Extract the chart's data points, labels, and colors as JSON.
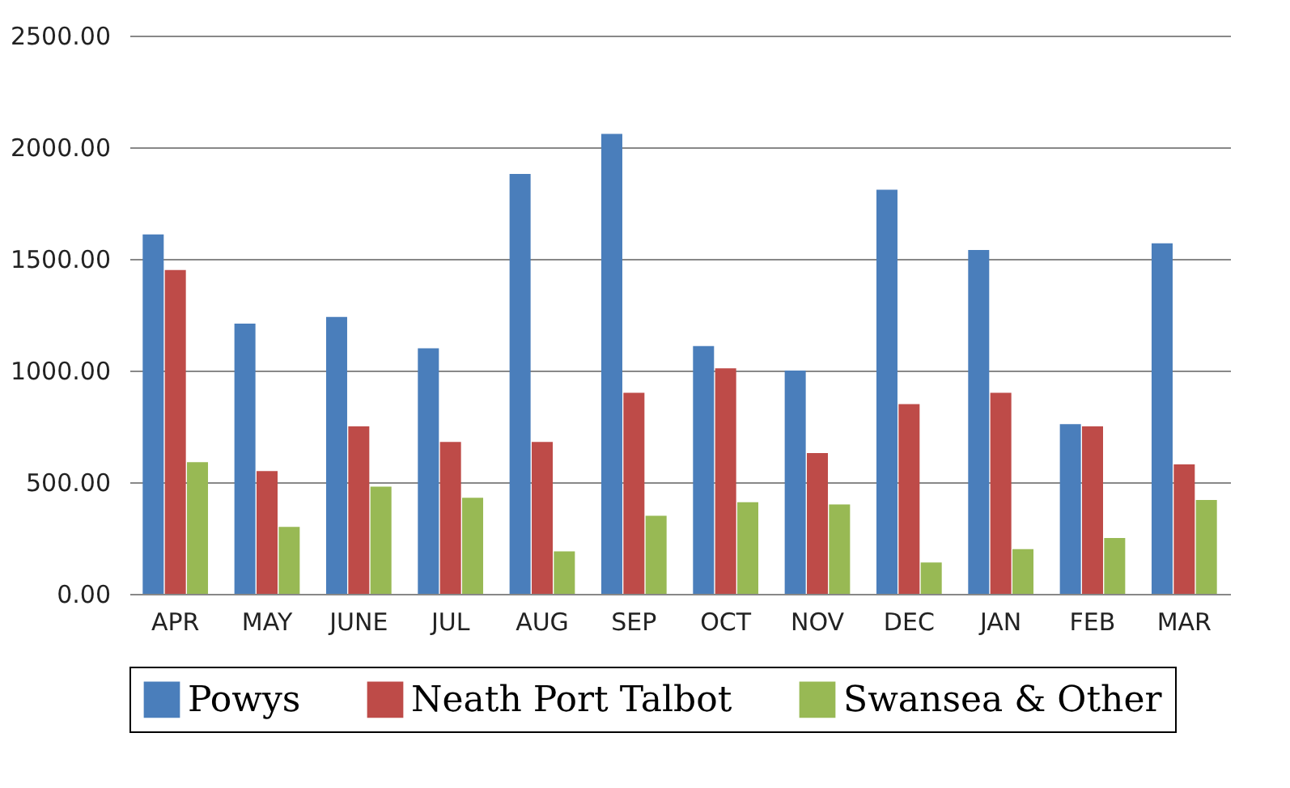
{
  "chart_data": {
    "type": "bar",
    "categories": [
      "APR",
      "MAY",
      "JUNE",
      "JUL",
      "AUG",
      "SEP",
      "OCT",
      "NOV",
      "DEC",
      "JAN",
      "FEB",
      "MAR"
    ],
    "series": [
      {
        "name": "Powys",
        "color": "#4a7ebb",
        "values": [
          1610,
          1210,
          1240,
          1100,
          1880,
          2060,
          1110,
          1000,
          1810,
          1540,
          760,
          1570
        ]
      },
      {
        "name": "Neath Port Talbot",
        "color": "#be4b48",
        "values": [
          1450,
          550,
          750,
          680,
          680,
          900,
          1010,
          630,
          850,
          900,
          750,
          580
        ]
      },
      {
        "name": "Swansea & Other",
        "color": "#98b954",
        "values": [
          590,
          300,
          480,
          430,
          190,
          350,
          410,
          400,
          140,
          200,
          250,
          420
        ]
      }
    ],
    "ylim": [
      0,
      2500
    ],
    "yticks": [
      {
        "value": 0,
        "label": "0.00"
      },
      {
        "value": 500,
        "label": "500.00"
      },
      {
        "value": 1000,
        "label": "1000.00"
      },
      {
        "value": 1500,
        "label": "1500.00"
      },
      {
        "value": 2000,
        "label": "2000.00"
      },
      {
        "value": 2500,
        "label": "2500.00"
      }
    ],
    "grid": "y",
    "legend": "bottom"
  }
}
